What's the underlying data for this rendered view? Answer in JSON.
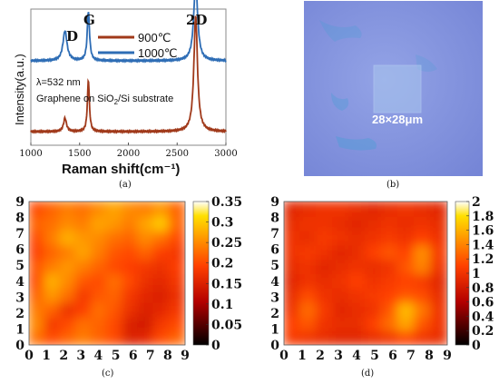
{
  "panels": {
    "a_label": "(a)",
    "b_label": "(b)",
    "c_label": "(c)",
    "d_label": "(d)"
  },
  "colors": {
    "spectrum_900": "#a0391a",
    "spectrum_1000": "#2e6db5",
    "micrograph_bg": "#8797df",
    "stain": "#4fa8d6"
  },
  "micrograph": {
    "scale_label": "28×28μm"
  },
  "chart_data": [
    {
      "type": "line",
      "xlabel": "Raman shift(cm⁻¹)",
      "ylabel": "Intensity(a.u.)",
      "xlim": [
        1000,
        3000
      ],
      "xticks": [
        "1000",
        "1500",
        "2000",
        "2500",
        "3000"
      ],
      "annotations": {
        "peak_D": "D",
        "peak_G": "G",
        "peak_2D": "2D",
        "wavelength": "λ=532 nm",
        "substrate": "Graphene on SiO",
        "substrate_sub": "2",
        "substrate_tail": "/Si substrate"
      },
      "series": [
        {
          "name": "900℃",
          "peaks": [
            {
              "x": 1350,
              "height": 0.1,
              "width": 18
            },
            {
              "x": 1590,
              "height": 0.38,
              "width": 12
            },
            {
              "x": 2690,
              "height": 0.85,
              "width": 22
            }
          ],
          "baseline": 0.1
        },
        {
          "name": "1000℃",
          "peaks": [
            {
              "x": 1350,
              "height": 0.22,
              "width": 25
            },
            {
              "x": 1590,
              "height": 0.36,
              "width": 14
            },
            {
              "x": 2690,
              "height": 0.58,
              "width": 24
            }
          ],
          "baseline": 0.62
        }
      ]
    },
    {
      "type": "heatmap",
      "xticks": [
        "0",
        "1",
        "2",
        "3",
        "4",
        "5",
        "6",
        "7",
        "8",
        "9"
      ],
      "yticks": [
        "0",
        "1",
        "2",
        "3",
        "4",
        "5",
        "6",
        "7",
        "8",
        "9"
      ],
      "colorbar_ticks": [
        "0",
        "0.05",
        "0.1",
        "0.15",
        "0.2",
        "0.25",
        "0.3",
        "0.35"
      ],
      "vmin": 0,
      "vmax": 0.35,
      "values": [
        [
          0.23,
          0.2,
          0.22,
          0.24,
          0.22,
          0.2,
          0.15,
          0.16,
          0.2,
          0.22
        ],
        [
          0.25,
          0.18,
          0.2,
          0.23,
          0.22,
          0.2,
          0.15,
          0.14,
          0.18,
          0.2
        ],
        [
          0.24,
          0.22,
          0.17,
          0.19,
          0.23,
          0.21,
          0.17,
          0.15,
          0.16,
          0.18
        ],
        [
          0.22,
          0.26,
          0.23,
          0.18,
          0.21,
          0.22,
          0.18,
          0.16,
          0.15,
          0.17
        ],
        [
          0.2,
          0.28,
          0.25,
          0.21,
          0.2,
          0.23,
          0.2,
          0.17,
          0.16,
          0.18
        ],
        [
          0.21,
          0.24,
          0.26,
          0.24,
          0.22,
          0.2,
          0.19,
          0.18,
          0.17,
          0.19
        ],
        [
          0.19,
          0.22,
          0.24,
          0.27,
          0.24,
          0.21,
          0.2,
          0.22,
          0.19,
          0.18
        ],
        [
          0.2,
          0.24,
          0.28,
          0.26,
          0.25,
          0.23,
          0.22,
          0.25,
          0.23,
          0.2
        ],
        [
          0.22,
          0.23,
          0.25,
          0.24,
          0.27,
          0.26,
          0.24,
          0.27,
          0.3,
          0.22
        ],
        [
          0.2,
          0.22,
          0.24,
          0.23,
          0.25,
          0.27,
          0.25,
          0.24,
          0.26,
          0.22
        ]
      ]
    },
    {
      "type": "heatmap",
      "xticks": [
        "0",
        "1",
        "2",
        "3",
        "4",
        "5",
        "6",
        "7",
        "8",
        "9"
      ],
      "yticks": [
        "0",
        "1",
        "2",
        "3",
        "4",
        "5",
        "6",
        "7",
        "8",
        "9"
      ],
      "colorbar_ticks": [
        "0",
        "0.2",
        "0.4",
        "0.6",
        "0.8",
        "1",
        "1.2",
        "1.4",
        "1.6",
        "1.8",
        "2"
      ],
      "vmin": 0,
      "vmax": 2,
      "values": [
        [
          1.05,
          1.0,
          0.95,
          0.9,
          0.9,
          0.95,
          1.0,
          1.1,
          1.0,
          0.95
        ],
        [
          1.1,
          1.2,
          1.0,
          0.95,
          0.95,
          1.1,
          1.3,
          1.55,
          1.2,
          1.0
        ],
        [
          1.0,
          1.3,
          1.05,
          0.9,
          0.95,
          1.0,
          1.2,
          1.65,
          1.35,
          1.0
        ],
        [
          0.95,
          1.15,
          1.0,
          0.95,
          1.0,
          1.05,
          1.1,
          1.2,
          1.15,
          0.95
        ],
        [
          0.9,
          1.0,
          0.95,
          1.0,
          1.1,
          1.0,
          1.05,
          1.1,
          1.05,
          0.9
        ],
        [
          0.95,
          1.0,
          0.9,
          0.95,
          1.0,
          0.95,
          1.0,
          1.2,
          1.4,
          1.0
        ],
        [
          1.0,
          1.05,
          1.0,
          0.9,
          0.95,
          1.1,
          1.2,
          1.1,
          1.45,
          1.05
        ],
        [
          1.0,
          0.95,
          1.05,
          1.0,
          0.95,
          1.0,
          1.05,
          1.0,
          1.1,
          1.0
        ],
        [
          0.95,
          1.0,
          1.0,
          0.95,
          0.9,
          0.95,
          1.0,
          0.95,
          1.0,
          0.95
        ],
        [
          0.9,
          0.95,
          1.0,
          1.0,
          0.95,
          0.9,
          0.95,
          1.0,
          0.95,
          0.9
        ]
      ]
    }
  ]
}
